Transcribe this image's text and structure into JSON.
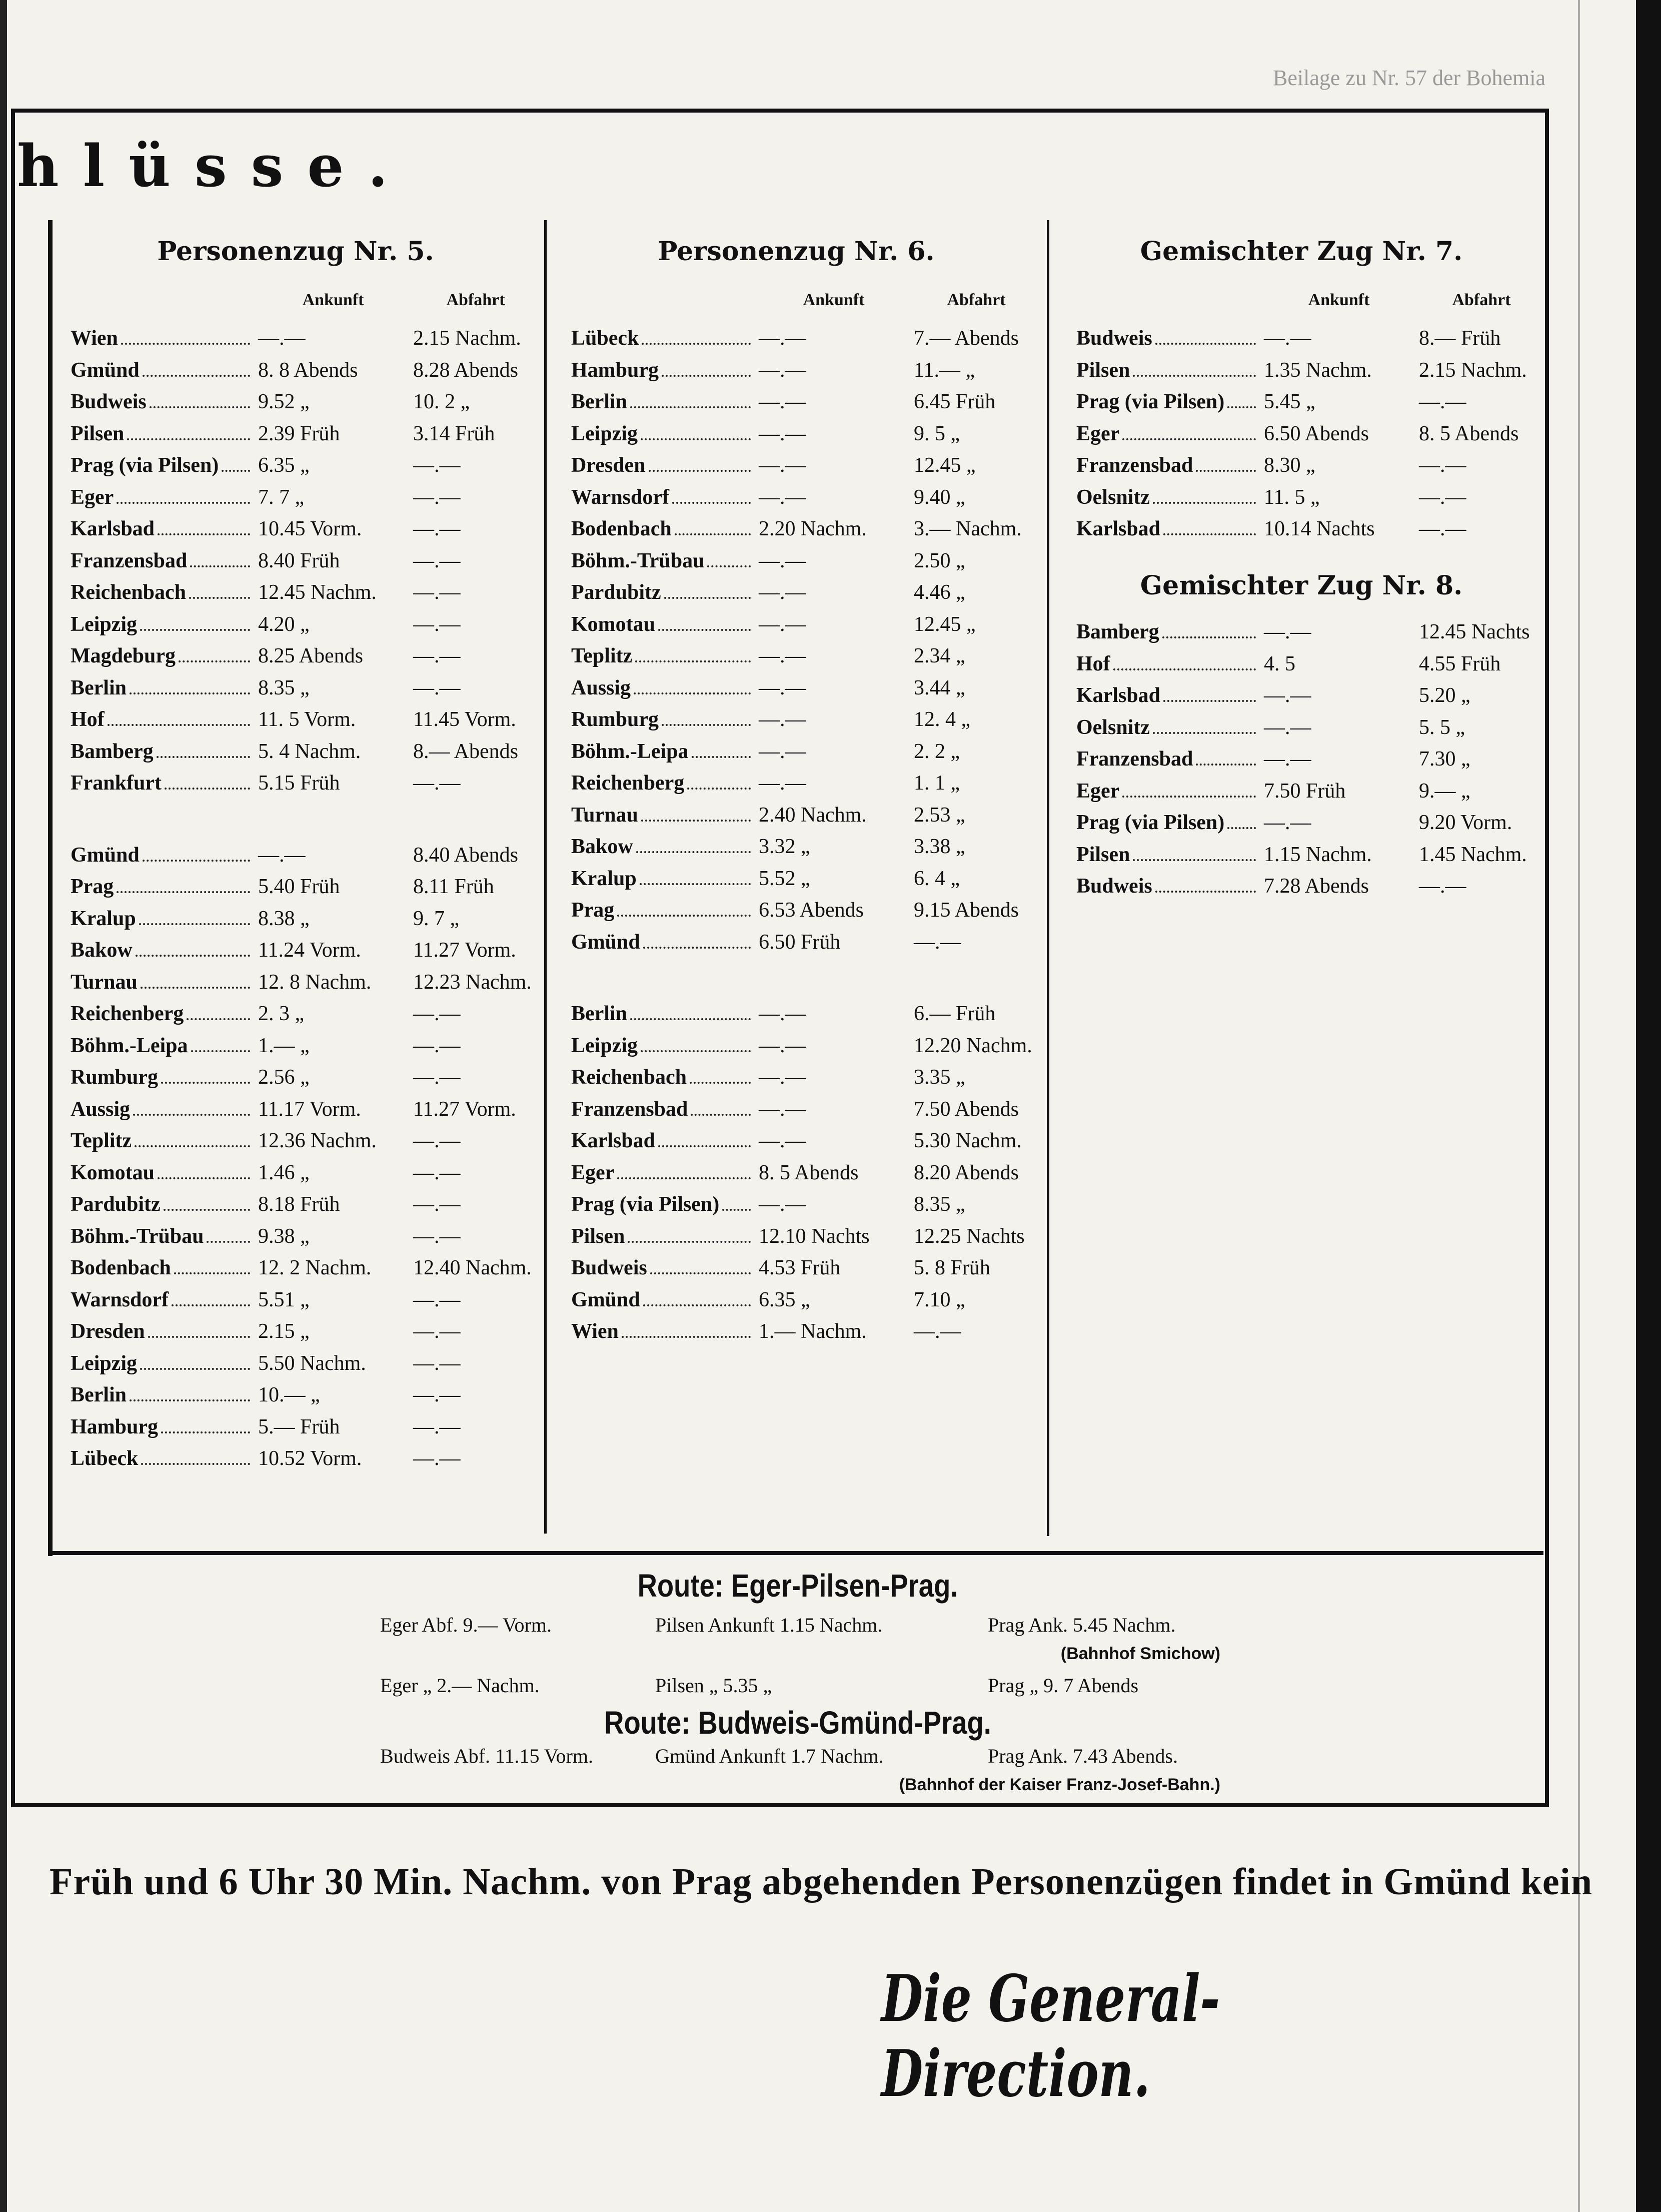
{
  "header": {
    "supplement": "Beilage zu Nr. 57 der Bohemia",
    "heading": "hlüsse."
  },
  "columns": [
    {
      "sections": [
        {
          "title": "Personenzug Nr. 5.",
          "headers": [
            "Ankunft",
            "Abfahrt"
          ],
          "blocks": [
            [
              [
                "Wien",
                "—.—",
                "2.15 Nachm."
              ],
              [
                "Gmünd",
                "8. 8 Abends",
                "8.28 Abends"
              ],
              [
                "Budweis",
                "9.52 „",
                "10. 2 „"
              ],
              [
                "Pilsen",
                "2.39 Früh",
                "3.14 Früh"
              ],
              [
                "Prag (via Pilsen)",
                "6.35 „",
                "—.—"
              ],
              [
                "Eger",
                "7. 7 „",
                "—.—"
              ],
              [
                "Karlsbad",
                "10.45 Vorm.",
                "—.—"
              ],
              [
                "Franzensbad",
                "8.40 Früh",
                "—.—"
              ],
              [
                "Reichenbach",
                "12.45 Nachm.",
                "—.—"
              ],
              [
                "Leipzig",
                "4.20 „",
                "—.—"
              ],
              [
                "Magdeburg",
                "8.25 Abends",
                "—.—"
              ],
              [
                "Berlin",
                "8.35 „",
                "—.—"
              ],
              [
                "Hof",
                "11. 5 Vorm.",
                "11.45 Vorm."
              ],
              [
                "Bamberg",
                "5. 4 Nachm.",
                "8.— Abends"
              ],
              [
                "Frankfurt",
                "5.15 Früh",
                "—.—"
              ]
            ],
            [
              [
                "Gmünd",
                "—.—",
                "8.40 Abends"
              ],
              [
                "Prag",
                "5.40 Früh",
                "8.11 Früh"
              ],
              [
                "Kralup",
                "8.38 „",
                "9. 7 „"
              ],
              [
                "Bakow",
                "11.24 Vorm.",
                "11.27 Vorm."
              ],
              [
                "Turnau",
                "12. 8 Nachm.",
                "12.23 Nachm."
              ],
              [
                "Reichenberg",
                "2. 3 „",
                "—.—"
              ],
              [
                "Böhm.-Leipa",
                "1.— „",
                "—.—"
              ],
              [
                "Rumburg",
                "2.56 „",
                "—.—"
              ],
              [
                "Aussig",
                "11.17 Vorm.",
                "11.27 Vorm."
              ],
              [
                "Teplitz",
                "12.36 Nachm.",
                "—.—"
              ],
              [
                "Komotau",
                "1.46 „",
                "—.—"
              ],
              [
                "Pardubitz",
                "8.18 Früh",
                "—.—"
              ],
              [
                "Böhm.-Trübau",
                "9.38 „",
                "—.—"
              ],
              [
                "Bodenbach",
                "12. 2 Nachm.",
                "12.40 Nachm."
              ],
              [
                "Warnsdorf",
                "5.51 „",
                "—.—"
              ],
              [
                "Dresden",
                "2.15 „",
                "—.—"
              ],
              [
                "Leipzig",
                "5.50 Nachm.",
                "—.—"
              ],
              [
                "Berlin",
                "10.— „",
                "—.—"
              ],
              [
                "Hamburg",
                "5.— Früh",
                "—.—"
              ],
              [
                "Lübeck",
                "10.52 Vorm.",
                "—.—"
              ]
            ]
          ]
        }
      ]
    },
    {
      "sections": [
        {
          "title": "Personenzug Nr. 6.",
          "headers": [
            "Ankunft",
            "Abfahrt"
          ],
          "blocks": [
            [
              [
                "Lübeck",
                "—.—",
                "7.— Abends"
              ],
              [
                "Hamburg",
                "—.—",
                "11.— „"
              ],
              [
                "Berlin",
                "—.—",
                "6.45 Früh"
              ],
              [
                "Leipzig",
                "—.—",
                "9. 5 „"
              ],
              [
                "Dresden",
                "—.—",
                "12.45 „"
              ],
              [
                "Warnsdorf",
                "—.—",
                "9.40 „"
              ],
              [
                "Bodenbach",
                "2.20 Nachm.",
                "3.— Nachm."
              ],
              [
                "Böhm.-Trübau",
                "—.—",
                "2.50 „"
              ],
              [
                "Pardubitz",
                "—.—",
                "4.46 „"
              ],
              [
                "Komotau",
                "—.—",
                "12.45 „"
              ],
              [
                "Teplitz",
                "—.—",
                "2.34 „"
              ],
              [
                "Aussig",
                "—.—",
                "3.44 „"
              ],
              [
                "Rumburg",
                "—.—",
                "12. 4 „"
              ],
              [
                "Böhm.-Leipa",
                "—.—",
                "2. 2 „"
              ],
              [
                "Reichenberg",
                "—.—",
                "1. 1 „"
              ],
              [
                "Turnau",
                "2.40 Nachm.",
                "2.53 „"
              ],
              [
                "Bakow",
                "3.32 „",
                "3.38 „"
              ],
              [
                "Kralup",
                "5.52 „",
                "6. 4 „"
              ],
              [
                "Prag",
                "6.53 Abends",
                "9.15 Abends"
              ],
              [
                "Gmünd",
                "6.50 Früh",
                "—.—"
              ]
            ],
            [
              [
                "Berlin",
                "—.—",
                "6.— Früh"
              ],
              [
                "Leipzig",
                "—.—",
                "12.20 Nachm."
              ],
              [
                "Reichenbach",
                "—.—",
                "3.35 „"
              ],
              [
                "Franzensbad",
                "—.—",
                "7.50 Abends"
              ],
              [
                "Karlsbad",
                "—.—",
                "5.30 Nachm."
              ],
              [
                "Eger",
                "8. 5 Abends",
                "8.20 Abends"
              ],
              [
                "Prag (via Pilsen)",
                "—.—",
                "8.35 „"
              ],
              [
                "Pilsen",
                "12.10 Nachts",
                "12.25 Nachts"
              ],
              [
                "Budweis",
                "4.53 Früh",
                "5. 8 Früh"
              ],
              [
                "Gmünd",
                "6.35 „",
                "7.10 „"
              ],
              [
                "Wien",
                "1.— Nachm.",
                "—.—"
              ]
            ]
          ]
        }
      ]
    },
    {
      "sections": [
        {
          "title": "Gemischter Zug Nr. 7.",
          "headers": [
            "Ankunft",
            "Abfahrt"
          ],
          "blocks": [
            [
              [
                "Budweis",
                "—.—",
                "8.— Früh"
              ],
              [
                "Pilsen",
                "1.35 Nachm.",
                "2.15 Nachm."
              ],
              [
                "Prag (via Pilsen)",
                "5.45 „",
                "—.—"
              ],
              [
                "Eger",
                "6.50 Abends",
                "8. 5 Abends"
              ],
              [
                "Franzensbad",
                "8.30 „",
                "—.—"
              ],
              [
                "Oelsnitz",
                "11. 5 „",
                "—.—"
              ],
              [
                "Karlsbad",
                "10.14 Nachts",
                "—.—"
              ]
            ]
          ]
        },
        {
          "title": "Gemischter Zug Nr. 8.",
          "blocks": [
            [
              [
                "Bamberg",
                "—.—",
                "12.45 Nachts"
              ],
              [
                "Hof",
                "4. 5",
                "4.55 Früh"
              ],
              [
                "Karlsbad",
                "—.—",
                "5.20 „"
              ],
              [
                "Oelsnitz",
                "—.—",
                "5. 5 „"
              ],
              [
                "Franzensbad",
                "—.—",
                "7.30 „"
              ],
              [
                "Eger",
                "7.50 Früh",
                "9.— „"
              ],
              [
                "Prag (via Pilsen)",
                "—.—",
                "9.20 Vorm."
              ],
              [
                "Pilsen",
                "1.15 Nachm.",
                "1.45 Nachm."
              ],
              [
                "Budweis",
                "7.28 Abends",
                "—.—"
              ]
            ]
          ]
        }
      ]
    }
  ],
  "routes": [
    {
      "title": "Route: Eger-Pilsen-Prag.",
      "lines": [
        [
          "Eger Abf. 9.— Vorm.",
          "Pilsen Ankunft 1.15 Nachm.",
          "Prag Ank. 5.45 Nachm."
        ],
        [
          "Eger „ 2.— Nachm.",
          "Pilsen „ 5.35 „",
          "Prag „ 9. 7 Abends"
        ]
      ],
      "note": "(Bahnhof Smichow)"
    },
    {
      "title": "Route: Budweis-Gmünd-Prag.",
      "lines": [
        [
          "Budweis Abf. 11.15 Vorm.",
          "Gmünd Ankunft 1.7 Nachm.",
          "Prag Ank. 7.43 Abends."
        ]
      ],
      "note": "(Bahnhof der Kaiser Franz-Josef-Bahn.)"
    }
  ],
  "footer": {
    "text": "Früh und 6 Uhr 30 Min. Nachm. von Prag abgehenden Personenzügen findet in Gmünd kein",
    "signature": "Die General-Direction."
  }
}
